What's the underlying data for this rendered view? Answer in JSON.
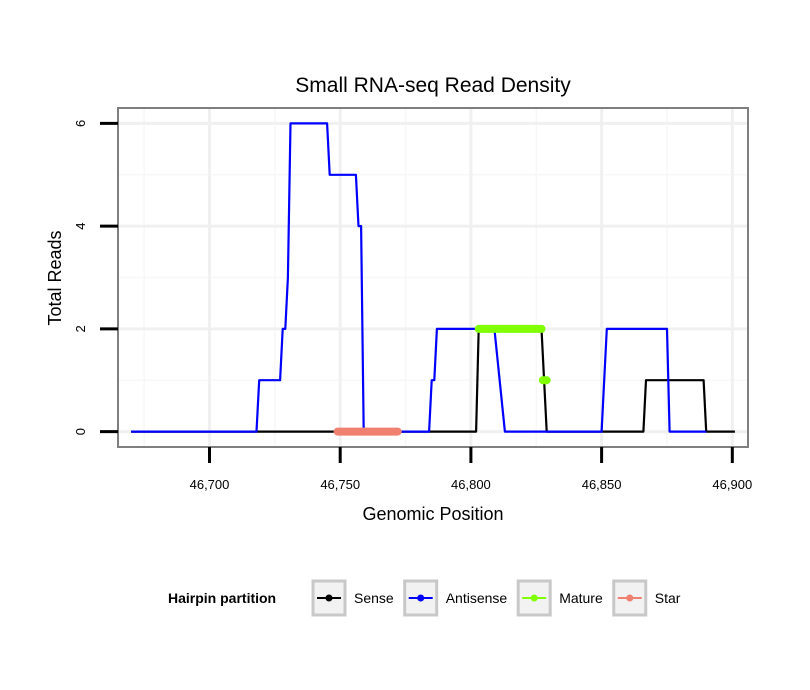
{
  "chart_data": {
    "type": "line",
    "title": "Small RNA-seq Read Density",
    "xlabel": "Genomic Position",
    "ylabel": "Total Reads",
    "xlim": [
      46665,
      46906
    ],
    "ylim": [
      -0.3,
      6.3
    ],
    "x_ticks": [
      46700,
      46750,
      46800,
      46850,
      46900
    ],
    "x_tick_labels": [
      "46,700",
      "46,750",
      "46,800",
      "46,850",
      "46,900"
    ],
    "y_ticks": [
      0,
      2,
      4,
      6
    ],
    "y_tick_labels": [
      "0",
      "2",
      "4",
      "6"
    ],
    "grid": true,
    "series": [
      {
        "name": "Sense",
        "color": "#000000",
        "points": [
          [
            46670,
            0
          ],
          [
            46802,
            0
          ],
          [
            46803,
            2
          ],
          [
            46827,
            2
          ],
          [
            46829,
            0
          ],
          [
            46866,
            0
          ],
          [
            46867,
            1
          ],
          [
            46889,
            1
          ],
          [
            46890,
            0
          ],
          [
            46901,
            0
          ]
        ]
      },
      {
        "name": "Antisense",
        "color": "#0000ff",
        "points": [
          [
            46670,
            0
          ],
          [
            46718,
            0
          ],
          [
            46719,
            1
          ],
          [
            46727,
            1
          ],
          [
            46728,
            2
          ],
          [
            46729,
            2
          ],
          [
            46730,
            3
          ],
          [
            46731,
            6
          ],
          [
            46745,
            6
          ],
          [
            46746,
            5
          ],
          [
            46756,
            5
          ],
          [
            46757,
            4
          ],
          [
            46758,
            4
          ],
          [
            46759,
            0
          ],
          [
            46784,
            0
          ],
          [
            46785,
            1
          ],
          [
            46786,
            1
          ],
          [
            46787,
            2
          ],
          [
            46809,
            2
          ],
          [
            46813,
            0
          ],
          [
            46850,
            0
          ],
          [
            46851,
            1
          ],
          [
            46852,
            2
          ],
          [
            46875,
            2
          ],
          [
            46876,
            0
          ],
          [
            46890,
            0
          ]
        ]
      }
    ],
    "marks": [
      {
        "name": "Mature",
        "color": "#7fff00",
        "kind": "segment",
        "x0": 46803,
        "x1": 46827,
        "y": 2
      },
      {
        "name": "Mature",
        "color": "#7fff00",
        "kind": "segment",
        "x0": 46827.5,
        "x1": 46829,
        "y": 1
      },
      {
        "name": "Star",
        "color": "#f08070",
        "kind": "segment",
        "x0": 46749,
        "x1": 46772,
        "y": 0
      }
    ],
    "legend": {
      "title": "Hairpin partition",
      "position": "bottom",
      "entries": [
        {
          "label": "Sense",
          "color": "#000000"
        },
        {
          "label": "Antisense",
          "color": "#0000ff"
        },
        {
          "label": "Mature",
          "color": "#7fff00"
        },
        {
          "label": "Star",
          "color": "#f08070"
        }
      ]
    }
  }
}
